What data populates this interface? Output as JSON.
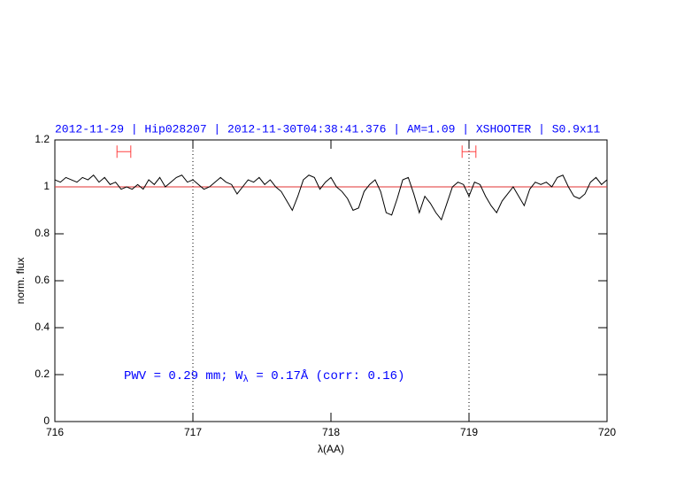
{
  "chart_data": {
    "type": "line",
    "title": "2012-11-29 | Hip028207 | 2012-11-30T04:38:41.376 | AM=1.09 | XSHOOTER | S0.9x11",
    "xlabel": "λ(AA)",
    "ylabel": "norm. flux",
    "annotation": [
      "PWV = 0.29 mm; W",
      "λ",
      " = 0.17Å (corr: 0.16)"
    ],
    "xlim": [
      716,
      720
    ],
    "xticks": [
      716,
      717,
      718,
      719,
      720
    ],
    "ylim": [
      0,
      1.2
    ],
    "yticks": [
      0,
      0.2,
      0.4,
      0.6,
      0.8,
      1,
      1.2
    ],
    "color": "#000000",
    "hline": 1,
    "hline_color": "#e03030",
    "vlines": [
      717,
      719
    ],
    "markers": [
      {
        "x": 716.5,
        "xerr": 0.05,
        "y": 1.15
      },
      {
        "x": 719,
        "xerr": 0.05,
        "y": 1.15
      }
    ],
    "marker_color": "#ff4040",
    "x": [
      716.0,
      716.04,
      716.08,
      716.12,
      716.16,
      716.2,
      716.24,
      716.28,
      716.32,
      716.36,
      716.4,
      716.44,
      716.48,
      716.52,
      716.56,
      716.6,
      716.64,
      716.68,
      716.72,
      716.76,
      716.8,
      716.84,
      716.88,
      716.92,
      716.96,
      717.0,
      717.04,
      717.08,
      717.12,
      717.16,
      717.2,
      717.24,
      717.28,
      717.32,
      717.36,
      717.4,
      717.44,
      717.48,
      717.52,
      717.56,
      717.6,
      717.64,
      717.68,
      717.72,
      717.76,
      717.8,
      717.84,
      717.88,
      717.92,
      717.96,
      718.0,
      718.04,
      718.08,
      718.12,
      718.16,
      718.2,
      718.24,
      718.28,
      718.32,
      718.36,
      718.4,
      718.44,
      718.48,
      718.52,
      718.56,
      718.6,
      718.64,
      718.68,
      718.72,
      718.76,
      718.8,
      718.84,
      718.88,
      718.92,
      718.96,
      719.0,
      719.04,
      719.08,
      719.12,
      719.16,
      719.2,
      719.24,
      719.28,
      719.32,
      719.36,
      719.4,
      719.44,
      719.48,
      719.52,
      719.56,
      719.6,
      719.64,
      719.68,
      719.72,
      719.76,
      719.8,
      719.84,
      719.88,
      719.92,
      719.96,
      720.0
    ],
    "values": [
      1.03,
      1.02,
      1.04,
      1.03,
      1.02,
      1.04,
      1.03,
      1.05,
      1.02,
      1.04,
      1.01,
      1.02,
      0.99,
      1.0,
      0.99,
      1.01,
      0.99,
      1.03,
      1.01,
      1.04,
      1.0,
      1.02,
      1.04,
      1.05,
      1.02,
      1.03,
      1.01,
      0.99,
      1.0,
      1.02,
      1.04,
      1.02,
      1.01,
      0.97,
      1.0,
      1.03,
      1.02,
      1.04,
      1.01,
      1.03,
      1.0,
      0.98,
      0.94,
      0.9,
      0.96,
      1.03,
      1.05,
      1.04,
      0.99,
      1.02,
      1.04,
      1.0,
      0.98,
      0.95,
      0.9,
      0.91,
      0.98,
      1.01,
      1.03,
      0.98,
      0.89,
      0.88,
      0.95,
      1.03,
      1.04,
      0.97,
      0.89,
      0.96,
      0.93,
      0.89,
      0.86,
      0.93,
      1.0,
      1.02,
      1.01,
      0.96,
      1.02,
      1.01,
      0.96,
      0.92,
      0.89,
      0.94,
      0.97,
      1.0,
      0.96,
      0.92,
      0.99,
      1.02,
      1.01,
      1.02,
      1.0,
      1.04,
      1.05,
      1.0,
      0.96,
      0.95,
      0.97,
      1.02,
      1.04,
      1.01,
      1.03
    ]
  }
}
